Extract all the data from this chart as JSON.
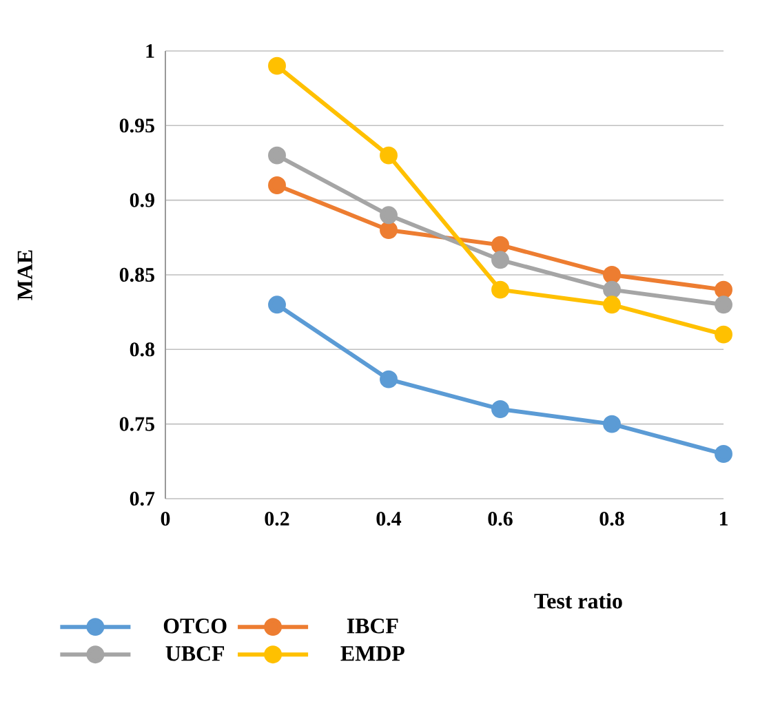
{
  "chart_data": {
    "type": "line",
    "xlabel": "Test ratio",
    "ylabel": "MAE",
    "x": [
      0.2,
      0.4,
      0.6,
      0.8,
      1
    ],
    "series": [
      {
        "name": "OTCO",
        "color": "#5b9bd5",
        "values": [
          0.83,
          0.78,
          0.76,
          0.75,
          0.73
        ]
      },
      {
        "name": "IBCF",
        "color": "#ed7d31",
        "values": [
          0.91,
          0.88,
          0.87,
          0.85,
          0.84
        ]
      },
      {
        "name": "UBCF",
        "color": "#a5a5a5",
        "values": [
          0.93,
          0.89,
          0.86,
          0.84,
          0.83
        ]
      },
      {
        "name": "EMDP",
        "color": "#ffc000",
        "values": [
          0.99,
          0.93,
          0.84,
          0.83,
          0.81
        ]
      }
    ],
    "xlim": [
      0,
      1
    ],
    "ylim": [
      0.7,
      1
    ],
    "xticks": [
      0,
      0.2,
      0.4,
      0.6,
      0.8,
      1
    ],
    "yticks": [
      0.7,
      0.75,
      0.8,
      0.85,
      0.9,
      0.95,
      1
    ],
    "grid": "y",
    "legend": "bottom",
    "marker": "circle",
    "line_style": "solid"
  }
}
